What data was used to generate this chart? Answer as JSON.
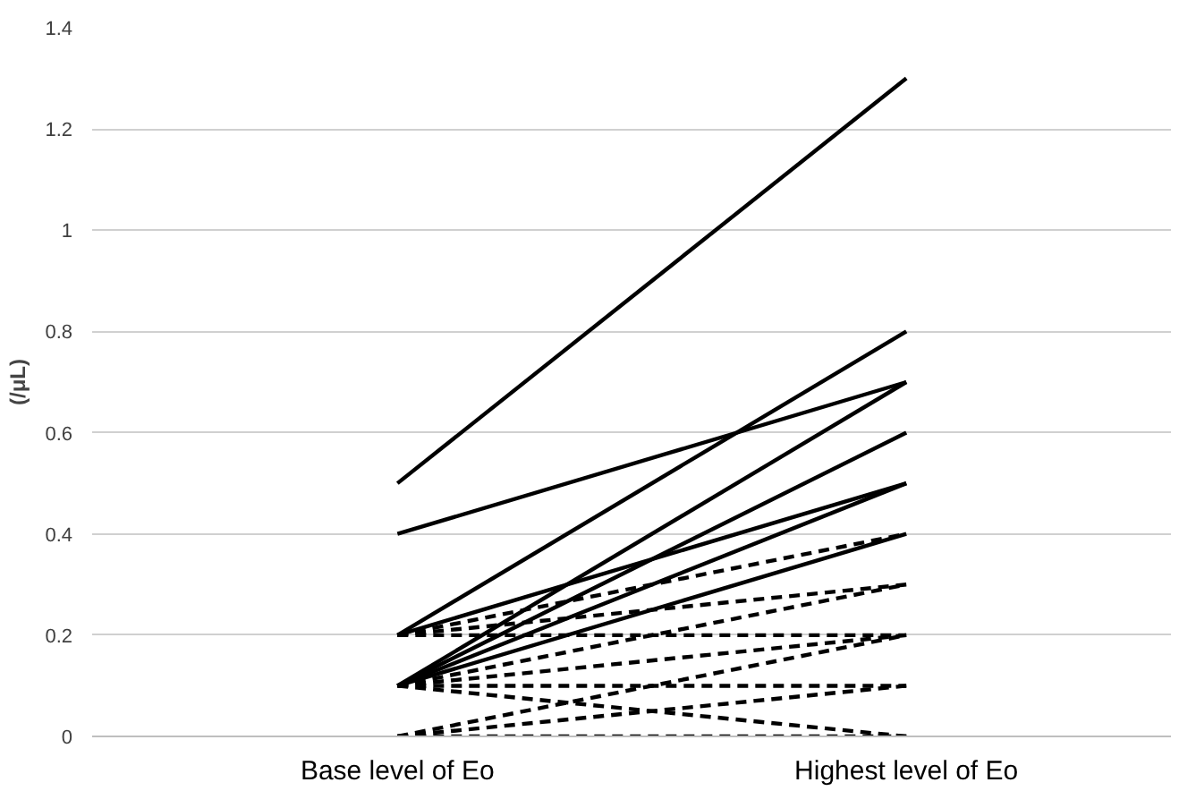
{
  "chart_data": {
    "type": "line",
    "ylabel": "(/μL)",
    "categories": [
      "Base level of Eo",
      "Highest level of Eo"
    ],
    "ylim": [
      0,
      1.4
    ],
    "yticks": [
      0,
      0.2,
      0.4,
      0.6,
      0.8,
      1,
      1.2,
      1.4
    ],
    "grid": "y",
    "marker": "none",
    "series": [
      {
        "color": "#000000",
        "line_style": "solid",
        "values": [
          0.5,
          1.3
        ]
      },
      {
        "color": "#000000",
        "line_style": "solid",
        "values": [
          0.4,
          0.7
        ]
      },
      {
        "color": "#000000",
        "line_style": "solid",
        "values": [
          0.2,
          0.8
        ]
      },
      {
        "color": "#000000",
        "line_style": "solid",
        "values": [
          0.2,
          0.5
        ]
      },
      {
        "color": "#000000",
        "line_style": "solid",
        "values": [
          0.1,
          0.7
        ]
      },
      {
        "color": "#000000",
        "line_style": "solid",
        "values": [
          0.1,
          0.6
        ]
      },
      {
        "color": "#000000",
        "line_style": "solid",
        "values": [
          0.1,
          0.5
        ]
      },
      {
        "color": "#000000",
        "line_style": "solid",
        "values": [
          0.1,
          0.4
        ]
      },
      {
        "color": "#000000",
        "line_style": "dashed",
        "values": [
          0.2,
          0.4
        ]
      },
      {
        "color": "#000000",
        "line_style": "dashed",
        "values": [
          0.2,
          0.3
        ]
      },
      {
        "color": "#000000",
        "line_style": "dashed",
        "values": [
          0.1,
          0.3
        ]
      },
      {
        "color": "#000000",
        "line_style": "dashed",
        "values": [
          0.2,
          0.2
        ]
      },
      {
        "color": "#000000",
        "line_style": "dashed",
        "values": [
          0.1,
          0.2
        ]
      },
      {
        "color": "#000000",
        "line_style": "dashed",
        "values": [
          0,
          0.2
        ]
      },
      {
        "color": "#000000",
        "line_style": "dashed",
        "values": [
          0.1,
          0.1
        ]
      },
      {
        "color": "#000000",
        "line_style": "dashed",
        "values": [
          0,
          0.1
        ]
      },
      {
        "color": "#000000",
        "line_style": "dashed",
        "values": [
          0.1,
          0
        ]
      },
      {
        "color": "#000000",
        "line_style": "dashed",
        "values": [
          0,
          0
        ]
      }
    ]
  }
}
